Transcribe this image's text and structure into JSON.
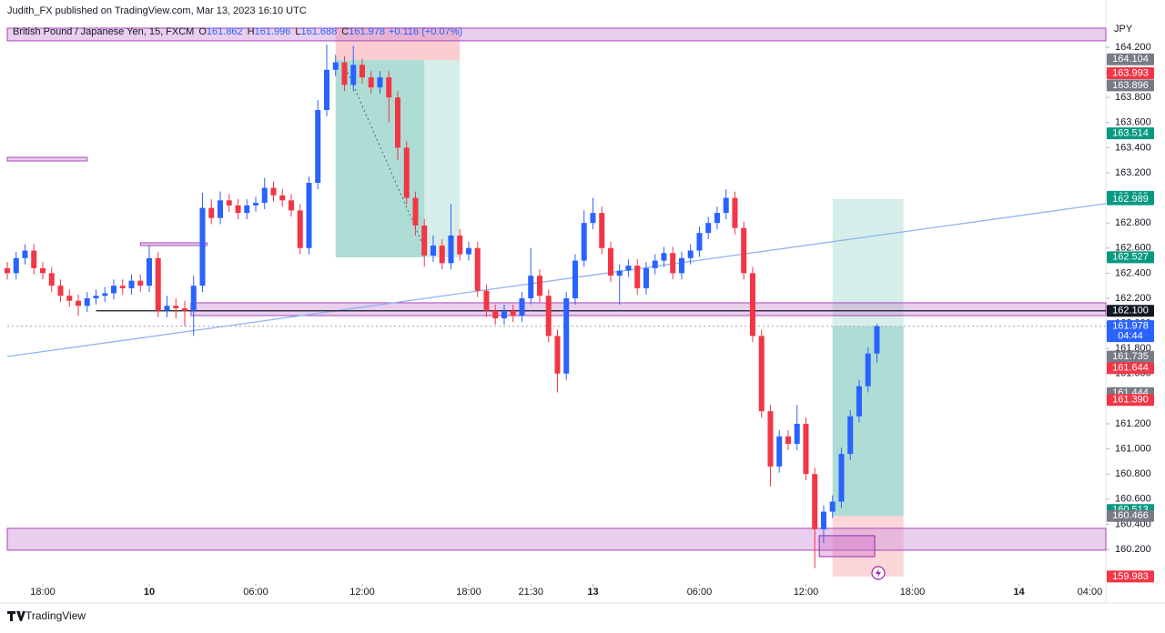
{
  "header": {
    "published": "Judith_FX published on TradingView.com, Mar 13, 2023 16:10 UTC",
    "brand": "TradingView"
  },
  "chart_data": {
    "type": "candlestick",
    "symbol": "British Pound / Japanese Yen, 15, FXCM",
    "ohlc_labels": [
      {
        "key": "O",
        "value": "161.862"
      },
      {
        "key": "H",
        "value": "161.996"
      },
      {
        "key": "L",
        "value": "161.688"
      },
      {
        "key": "C",
        "value": "161.978"
      }
    ],
    "change": "+0.116 (+0.07%)",
    "currency": "JPY",
    "up_color": "#2962ff",
    "down_color": "#f23645",
    "xlim": [
      0,
      247.6
    ],
    "ylim": [
      159.939,
      164.417
    ],
    "xticks": [
      {
        "value": 8,
        "label": "18:00"
      },
      {
        "value": 32,
        "label": "10"
      },
      {
        "value": 56,
        "label": "06:00"
      },
      {
        "value": 80,
        "label": "12:00"
      },
      {
        "value": 104,
        "label": "18:00"
      },
      {
        "value": 118,
        "label": "21:30"
      },
      {
        "value": 132,
        "label": "13"
      },
      {
        "value": 156,
        "label": "06:00"
      },
      {
        "value": 180,
        "label": "12:00"
      },
      {
        "value": 204,
        "label": "18:00"
      },
      {
        "value": 228,
        "label": "14"
      },
      {
        "value": 244,
        "label": "04:00"
      }
    ],
    "yticks": [
      {
        "value": 164.2,
        "label": "164.200"
      },
      {
        "value": 164.0,
        "label": "164.000"
      },
      {
        "value": 163.8,
        "label": "163.800"
      },
      {
        "value": 163.6,
        "label": "163.600"
      },
      {
        "value": 163.4,
        "label": "163.400"
      },
      {
        "value": 163.2,
        "label": "163.200"
      },
      {
        "value": 163.0,
        "label": "163.000"
      },
      {
        "value": 162.8,
        "label": "162.800"
      },
      {
        "value": 162.6,
        "label": "162.600"
      },
      {
        "value": 162.4,
        "label": "162.400"
      },
      {
        "value": 162.2,
        "label": "162.200"
      },
      {
        "value": 162.0,
        "label": "162.000"
      },
      {
        "value": 161.8,
        "label": "161.800"
      },
      {
        "value": 161.6,
        "label": "161.600"
      },
      {
        "value": 161.4,
        "label": "161.400"
      },
      {
        "value": 161.2,
        "label": "161.200"
      },
      {
        "value": 161.0,
        "label": "161.000"
      },
      {
        "value": 160.8,
        "label": "160.800"
      },
      {
        "value": 160.6,
        "label": "160.600"
      },
      {
        "value": 160.4,
        "label": "160.400"
      },
      {
        "value": 160.2,
        "label": "160.200"
      }
    ],
    "x": [
      0,
      2,
      4,
      6,
      8,
      10,
      12,
      14,
      16,
      18,
      20,
      22,
      24,
      26,
      28,
      30,
      32,
      34,
      36,
      38,
      40,
      42,
      44,
      46,
      48,
      50,
      52,
      54,
      56,
      58,
      60,
      62,
      64,
      66,
      68,
      70,
      72,
      74,
      76,
      78,
      80,
      82,
      84,
      86,
      88,
      90,
      92,
      94,
      96,
      98,
      100,
      102,
      104,
      106,
      108,
      110,
      112,
      114,
      116,
      118,
      120,
      122,
      124,
      126,
      128,
      130,
      132,
      134,
      136,
      138,
      140,
      142,
      144,
      146,
      148,
      150,
      152,
      154,
      156,
      158,
      160,
      162,
      164,
      166,
      168,
      170,
      172,
      174,
      176,
      178,
      180,
      182,
      184,
      186,
      188,
      190,
      192,
      194,
      196
    ],
    "open": [
      162.44,
      162.4,
      162.52,
      162.58,
      162.44,
      162.4,
      162.3,
      162.22,
      162.18,
      162.14,
      162.2,
      162.22,
      162.24,
      162.3,
      162.28,
      162.34,
      162.3,
      162.52,
      162.1,
      162.14,
      162.12,
      162.1,
      162.3,
      162.92,
      162.84,
      162.98,
      162.94,
      162.88,
      162.94,
      162.96,
      163.08,
      163.02,
      162.98,
      162.9,
      162.6,
      163.12,
      163.7,
      164.02,
      164.08,
      163.9,
      164.06,
      163.96,
      163.88,
      163.96,
      163.8,
      163.4,
      163.0,
      162.78,
      162.54,
      162.62,
      162.48,
      162.7,
      162.55,
      162.6,
      162.26,
      162.1,
      162.04,
      162.1,
      162.06,
      162.2,
      162.38,
      162.22,
      161.9,
      161.6,
      162.2,
      162.5,
      162.8,
      162.88,
      162.6,
      162.38,
      162.42,
      162.46,
      162.28,
      162.44,
      162.5,
      162.56,
      162.4,
      162.52,
      162.58,
      162.72,
      162.8,
      162.88,
      163.0,
      162.76,
      162.4,
      161.9,
      161.3,
      160.86,
      161.1,
      161.04,
      161.2,
      160.8,
      160.36,
      160.5,
      160.58,
      160.96,
      161.26,
      161.5,
      161.76
    ],
    "high": [
      162.49,
      162.57,
      162.63,
      162.63,
      162.49,
      162.45,
      162.35,
      162.27,
      162.23,
      162.25,
      162.27,
      162.29,
      162.35,
      162.35,
      162.39,
      162.39,
      162.62,
      162.57,
      162.22,
      162.2,
      162.18,
      162.38,
      163.04,
      162.99,
      163.05,
      163.03,
      162.99,
      162.99,
      163.01,
      163.16,
      163.13,
      163.07,
      163.03,
      162.95,
      163.17,
      163.78,
      164.22,
      164.14,
      164.13,
      164.21,
      164.11,
      164.01,
      164.01,
      164.01,
      163.85,
      163.45,
      163.05,
      162.83,
      162.7,
      162.67,
      162.95,
      162.75,
      162.65,
      162.65,
      162.31,
      162.15,
      162.15,
      162.15,
      162.25,
      162.6,
      162.43,
      162.27,
      161.95,
      162.25,
      162.55,
      162.9,
      163.0,
      162.93,
      162.65,
      162.47,
      162.51,
      162.51,
      162.49,
      162.55,
      162.61,
      162.61,
      162.57,
      162.63,
      162.77,
      162.85,
      162.93,
      163.07,
      163.05,
      162.81,
      162.45,
      161.95,
      161.35,
      161.15,
      161.15,
      161.35,
      161.25,
      160.85,
      160.55,
      160.63,
      161.01,
      161.31,
      161.55,
      161.81,
      161.996
    ],
    "low": [
      162.35,
      162.35,
      162.47,
      162.39,
      162.35,
      162.25,
      162.17,
      162.13,
      162.06,
      162.09,
      162.15,
      162.17,
      162.19,
      162.23,
      162.23,
      162.25,
      162.25,
      162.05,
      162.05,
      162.04,
      161.98,
      161.9,
      162.25,
      162.79,
      162.79,
      162.89,
      162.83,
      162.83,
      162.89,
      162.91,
      162.97,
      162.93,
      162.85,
      162.55,
      162.55,
      163.07,
      163.65,
      163.97,
      163.85,
      163.85,
      163.91,
      163.83,
      163.83,
      163.6,
      163.3,
      162.95,
      162.7,
      162.45,
      162.49,
      162.43,
      162.43,
      162.5,
      162.5,
      162.21,
      162.05,
      161.99,
      161.99,
      162.01,
      162.01,
      162.15,
      162.17,
      161.85,
      161.45,
      161.55,
      162.15,
      162.45,
      162.75,
      162.55,
      162.33,
      162.15,
      162.37,
      162.23,
      162.23,
      162.39,
      162.45,
      162.35,
      162.35,
      162.47,
      162.53,
      162.67,
      162.75,
      162.83,
      162.71,
      162.35,
      161.85,
      161.25,
      160.7,
      160.81,
      160.99,
      160.99,
      160.75,
      160.05,
      160.25,
      160.45,
      160.53,
      160.91,
      161.21,
      161.45,
      161.688
    ],
    "close": [
      162.4,
      162.52,
      162.58,
      162.44,
      162.4,
      162.3,
      162.22,
      162.18,
      162.14,
      162.2,
      162.22,
      162.24,
      162.3,
      162.28,
      162.34,
      162.3,
      162.52,
      162.1,
      162.14,
      162.12,
      162.1,
      162.3,
      162.92,
      162.84,
      162.98,
      162.94,
      162.88,
      162.94,
      162.96,
      163.08,
      163.02,
      162.98,
      162.9,
      162.6,
      163.12,
      163.7,
      164.02,
      164.08,
      163.9,
      164.06,
      163.96,
      163.88,
      163.96,
      163.8,
      163.4,
      163.0,
      162.78,
      162.54,
      162.62,
      162.48,
      162.7,
      162.55,
      162.6,
      162.26,
      162.1,
      162.04,
      162.1,
      162.06,
      162.2,
      162.38,
      162.22,
      161.9,
      161.6,
      162.2,
      162.5,
      162.8,
      162.88,
      162.6,
      162.38,
      162.42,
      162.46,
      162.28,
      162.44,
      162.5,
      162.56,
      162.4,
      162.52,
      162.58,
      162.72,
      162.8,
      162.88,
      163.0,
      162.76,
      162.4,
      161.9,
      161.3,
      160.86,
      161.1,
      161.04,
      161.2,
      160.8,
      160.36,
      160.5,
      160.58,
      160.96,
      161.26,
      161.5,
      161.76,
      161.978
    ],
    "zones": [
      {
        "x": [
          74,
          102
        ],
        "y": [
          164.359,
          164.099
        ],
        "fill": "rgba(242,54,69,0.25)"
      },
      {
        "x": [
          74,
          94
        ],
        "y": [
          164.099,
          162.526
        ],
        "fill": "rgba(8,153,129,0.33)"
      },
      {
        "x": [
          94,
          102
        ],
        "y": [
          164.099,
          162.526
        ],
        "fill": "rgba(8,153,129,0.17)"
      },
      {
        "x": [
          186,
          202
        ],
        "y": [
          162.99,
          161.978
        ],
        "fill": "rgba(8,153,129,0.17)"
      },
      {
        "x": [
          186,
          202
        ],
        "y": [
          161.978,
          160.466
        ],
        "fill": "rgba(8,153,129,0.33)"
      },
      {
        "x": [
          186,
          202
        ],
        "y": [
          160.466,
          159.983
        ],
        "fill": "rgba(242,54,69,0.2)"
      },
      {
        "x": [
          0,
          247.6
        ],
        "y": [
          164.352,
          164.251
        ],
        "fill": "rgba(206,147,216,0.45)",
        "stroke": "#ab47bc"
      },
      {
        "x": [
          0,
          18
        ],
        "y": [
          163.323,
          163.294
        ],
        "fill": "rgba(206,147,216,0.45)",
        "stroke": "#ab47bc"
      },
      {
        "x": [
          30,
          45
        ],
        "y": [
          162.642,
          162.62
        ],
        "fill": "rgba(206,147,216,0.45)",
        "stroke": "#ab47bc"
      },
      {
        "x": [
          41.4,
          247.6
        ],
        "y": [
          162.164,
          162.062
        ],
        "fill": "rgba(206,147,216,0.45)",
        "stroke": "#ab47bc"
      },
      {
        "x": [
          0,
          247.6
        ],
        "y": [
          160.367,
          160.193
        ],
        "fill": "rgba(206,147,216,0.45)",
        "stroke": "#ab47bc"
      },
      {
        "x": [
          183,
          195.5
        ],
        "y": [
          160.309,
          160.142
        ],
        "fill": "rgba(200,100,200,0.35)",
        "stroke": "#9c27b0"
      }
    ],
    "lines": [
      {
        "x": [
          0,
          247.6
        ],
        "y": [
          161.736,
          162.954
        ],
        "color": "#90b4f0"
      },
      {
        "x": [
          20,
          247.6
        ],
        "y": [
          162.1,
          162.1
        ],
        "color": "#131722"
      },
      {
        "x": [
          0,
          247.6
        ],
        "y": [
          161.978,
          161.978
        ],
        "color": "#b2b5be",
        "dash": "2 3"
      }
    ],
    "price_tags": [
      {
        "value": 164.104,
        "label": "164.104",
        "color": "#787b86"
      },
      {
        "value": 163.993,
        "label": "163.993",
        "color": "#f23645"
      },
      {
        "value": 163.896,
        "label": "163.896",
        "color": "#787b86"
      },
      {
        "value": 163.514,
        "label": "163.514",
        "color": "#089981"
      },
      {
        "value": 163.009,
        "label": "163.009",
        "color": "#089981"
      },
      {
        "value": 162.989,
        "label": "162.989",
        "color": "#089981"
      },
      {
        "value": 162.527,
        "label": "162.527",
        "color": "#089981"
      },
      {
        "value": 162.1,
        "label": "162.100",
        "color": "#131722"
      },
      {
        "value": 161.735,
        "label": "161.735",
        "color": "#787b86"
      },
      {
        "value": 161.644,
        "label": "161.644",
        "color": "#f23645"
      },
      {
        "value": 161.444,
        "label": "161.444",
        "color": "#787b86"
      },
      {
        "value": 161.39,
        "label": "161.390",
        "color": "#f23645"
      },
      {
        "value": 160.513,
        "label": "160.513",
        "color": "#089981"
      },
      {
        "value": 160.466,
        "label": "160.466",
        "color": "#787b86"
      },
      {
        "value": 159.983,
        "label": "159.983",
        "color": "#f23645"
      },
      {
        "value": 161.978,
        "label": "161.978",
        "color": "#2962ff",
        "sub": "04:44"
      }
    ]
  }
}
